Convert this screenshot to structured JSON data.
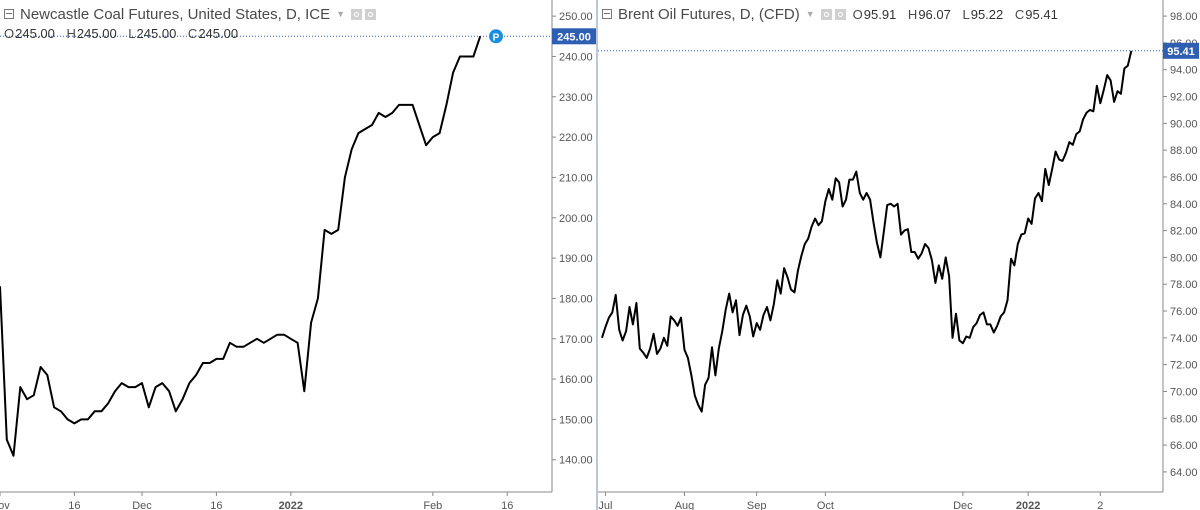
{
  "left_panel": {
    "title": "Newcastle Coal Futures, United States, D, ICE",
    "ohlc": [
      {
        "label": "O",
        "value": "245.00"
      },
      {
        "label": "H",
        "value": "245.00"
      },
      {
        "label": "L",
        "value": "245.00"
      },
      {
        "label": "C",
        "value": "245.00"
      }
    ],
    "price_tag": "245.00",
    "marker_letter": "P"
  },
  "right_panel": {
    "title": "Brent Oil Futures, D, (CFD)",
    "ohlc": [
      {
        "label": "O",
        "value": "95.91"
      },
      {
        "label": "H",
        "value": "96.07"
      },
      {
        "label": "L",
        "value": "95.22"
      },
      {
        "label": "C",
        "value": "95.41"
      }
    ],
    "price_tag": "95.41"
  },
  "colors": {
    "line": "#000000",
    "price_tag_bg": "#2f5fb3",
    "marker_bg": "#1a8fe0",
    "axis_text": "#555555",
    "axis_line": "#888888",
    "divider": "#b9c9dc"
  },
  "chart_data": [
    {
      "type": "line",
      "title": "Newcastle Coal Futures, United States, D, ICE",
      "ylim": [
        132,
        254
      ],
      "x_count": 77,
      "y_ticks": [
        "140.00",
        "150.00",
        "160.00",
        "170.00",
        "180.00",
        "190.00",
        "200.00",
        "210.00",
        "220.00",
        "230.00",
        "240.00",
        "250.00"
      ],
      "x_ticks": [
        {
          "label": "Nov",
          "index": 0,
          "bold": false
        },
        {
          "label": "16",
          "index": 11,
          "bold": false
        },
        {
          "label": "Dec",
          "index": 21,
          "bold": false
        },
        {
          "label": "16",
          "index": 32,
          "bold": false
        },
        {
          "label": "2022",
          "index": 43,
          "bold": true
        },
        {
          "label": "Feb",
          "index": 64,
          "bold": false
        },
        {
          "label": "16",
          "index": 75,
          "bold": false
        }
      ],
      "last_value": 245.0,
      "values": [
        183,
        145,
        141,
        158,
        155,
        156,
        163,
        161,
        153,
        152,
        150,
        149,
        150,
        150,
        152,
        152,
        154,
        157,
        159,
        158,
        158,
        159,
        153,
        158,
        159,
        157,
        152,
        155,
        159,
        161,
        164,
        164,
        165,
        165,
        169,
        168,
        168,
        169,
        170,
        169,
        170,
        171,
        171,
        170,
        169,
        157,
        174,
        180,
        197,
        196,
        197,
        210,
        217,
        221,
        222,
        223,
        226,
        225,
        226,
        228,
        228,
        228,
        223,
        218,
        220,
        221,
        228,
        236,
        240,
        240,
        240,
        245
      ]
    },
    {
      "type": "line",
      "title": "Brent Oil Futures, D, (CFD)",
      "ylim": [
        62.5,
        99.2
      ],
      "x_count": 159,
      "y_ticks": [
        "64.00",
        "66.00",
        "68.00",
        "70.00",
        "72.00",
        "74.00",
        "76.00",
        "78.00",
        "80.00",
        "82.00",
        "84.00",
        "86.00",
        "88.00",
        "90.00",
        "92.00",
        "94.00",
        "96.00",
        "98.00"
      ],
      "x_ticks": [
        {
          "label": "Jul",
          "index": 1,
          "bold": false
        },
        {
          "label": "Aug",
          "index": 24,
          "bold": false
        },
        {
          "label": "Sep",
          "index": 45,
          "bold": false
        },
        {
          "label": "Oct",
          "index": 65,
          "bold": false
        },
        {
          "label": "Dec",
          "index": 105,
          "bold": false
        },
        {
          "label": "2022",
          "index": 124,
          "bold": true
        },
        {
          "label": "2",
          "index": 145,
          "bold": false
        }
      ],
      "last_value": 95.41,
      "values": [
        74.0,
        74.8,
        75.5,
        75.9,
        77.2,
        74.6,
        73.8,
        74.5,
        76.3,
        75.0,
        76.6,
        73.2,
        72.9,
        72.5,
        73.2,
        74.3,
        72.8,
        73.2,
        74.0,
        73.4,
        75.6,
        75.3,
        74.9,
        75.5,
        73.1,
        72.5,
        71.2,
        69.7,
        69.0,
        68.5,
        70.5,
        71.0,
        73.3,
        71.2,
        73.2,
        74.5,
        76.1,
        77.3,
        75.9,
        76.8,
        74.2,
        75.7,
        76.4,
        75.6,
        74.1,
        75.1,
        74.6,
        75.7,
        76.3,
        75.3,
        76.5,
        78.3,
        77.3,
        79.2,
        78.5,
        77.6,
        77.4,
        79.0,
        80.1,
        81.0,
        81.4,
        82.3,
        82.9,
        82.4,
        82.7,
        84.2,
        85.1,
        84.3,
        85.9,
        85.6,
        83.8,
        84.3,
        85.8,
        85.8,
        86.4,
        84.8,
        84.3,
        84.8,
        84.3,
        82.6,
        81.1,
        80.0,
        81.9,
        83.9,
        84.0,
        83.8,
        84.0,
        81.7,
        82.0,
        82.1,
        80.4,
        80.4,
        79.9,
        80.3,
        81.0,
        80.7,
        79.8,
        78.1,
        79.4,
        78.4,
        80.0,
        78.6,
        74.0,
        75.8,
        73.8,
        73.6,
        74.1,
        74.0,
        74.8,
        75.1,
        75.7,
        75.9,
        75.0,
        75.0,
        74.4,
        74.9,
        75.6,
        75.9,
        76.8,
        79.9,
        79.4,
        81.0,
        81.7,
        81.8,
        82.9,
        82.5,
        84.4,
        84.8,
        84.2,
        86.6,
        85.4,
        86.6,
        87.9,
        87.3,
        87.2,
        87.8,
        88.6,
        88.4,
        89.2,
        89.4,
        90.3,
        90.8,
        91.0,
        90.9,
        92.8,
        91.5,
        92.5,
        93.6,
        93.2,
        91.6,
        92.4,
        92.2,
        94.1,
        94.3,
        95.4
      ]
    }
  ]
}
